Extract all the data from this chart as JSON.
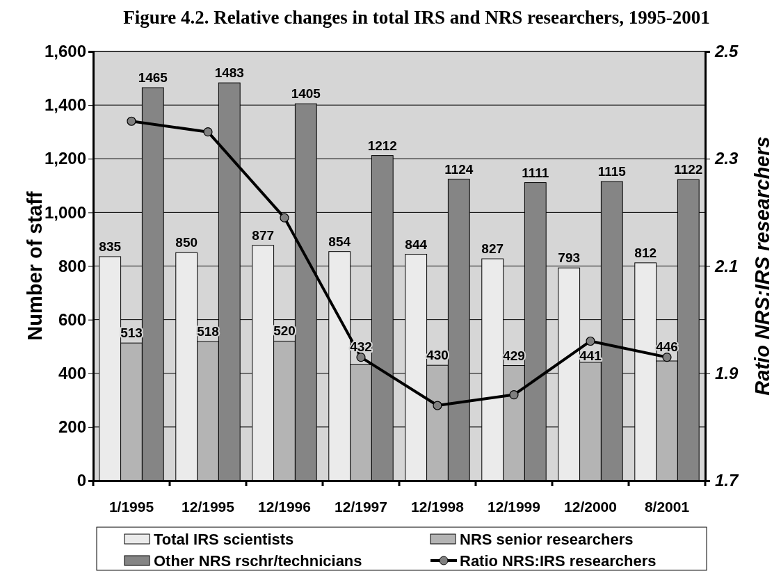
{
  "chart_data": {
    "type": "bar",
    "title": "Figure 4.2.  Relative changes in total IRS and NRS researchers, 1995-2001",
    "ylabel": "Number of staff",
    "y2label": "Ratio NRS:IRS researchers",
    "categories": [
      "1/1995",
      "12/1995",
      "12/1996",
      "12/1997",
      "12/1998",
      "12/1999",
      "12/2000",
      "8/2001"
    ],
    "series": [
      {
        "name": "Total IRS scientists",
        "color": "#ebebeb",
        "values": [
          835,
          850,
          877,
          854,
          844,
          827,
          793,
          812
        ],
        "value_labels": [
          "835",
          "850",
          "877",
          "854",
          "844",
          "827",
          "793",
          "812"
        ]
      },
      {
        "name": "NRS senior researchers",
        "color": "#b4b4b4",
        "values": [
          513,
          518,
          520,
          432,
          430,
          429,
          441,
          446
        ],
        "value_labels": [
          "513",
          "518",
          "520",
          "432",
          "430",
          "429",
          "441",
          "446"
        ]
      },
      {
        "name": "Other NRS rschr/technicians",
        "color": "#858585",
        "values": [
          1465,
          1483,
          1405,
          1212,
          1124,
          1111,
          1115,
          1122
        ],
        "value_labels": [
          "1465",
          "1483",
          "1405",
          "1212",
          "1124",
          "1111",
          "1115",
          "1122"
        ]
      },
      {
        "name": "Ratio NRS:IRS researchers",
        "type": "line",
        "axis": "y2",
        "color": "#000000",
        "marker": "circle",
        "values": [
          2.37,
          2.35,
          2.19,
          1.93,
          1.84,
          1.86,
          1.96,
          1.93
        ]
      }
    ],
    "ylim": [
      0,
      1600
    ],
    "yticks": [
      0,
      {
        "value": 200,
        "label": "200"
      },
      {
        "value": 400,
        "label": "400"
      },
      {
        "value": 600,
        "label": "600"
      },
      {
        "value": 800,
        "label": "800"
      },
      {
        "value": 1000,
        "label": "1,000"
      },
      {
        "value": 1200,
        "label": "1,200"
      },
      {
        "value": 1400,
        "label": "1,400"
      },
      {
        "value": 1600,
        "label": "1,600"
      }
    ],
    "y2lim": [
      1.7,
      2.5
    ],
    "y2ticks": [
      1.7,
      1.9,
      2.1,
      2.3,
      2.5
    ],
    "grid": "y",
    "legend": "bottom"
  }
}
